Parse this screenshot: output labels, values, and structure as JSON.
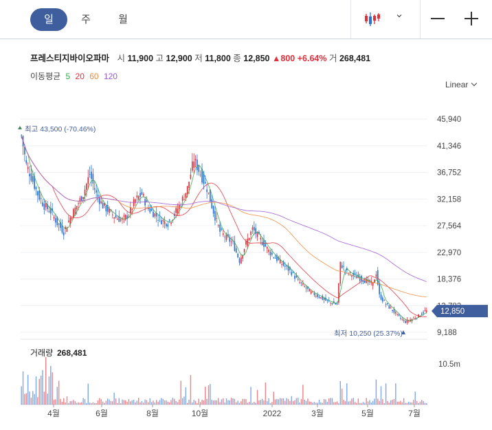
{
  "tabs": [
    {
      "label": "일",
      "active": true
    },
    {
      "label": "주",
      "active": false
    },
    {
      "label": "월",
      "active": false
    }
  ],
  "toolbar": {
    "chart_type_icon": "candlestick-icon",
    "dropdown_icon": "chevron-down-icon",
    "zoom_out_icon": "minus-icon",
    "zoom_in_icon": "plus-icon"
  },
  "quote": {
    "name": "프레스티지바이오파마",
    "open_label": "시",
    "open": "11,900",
    "high_label": "고",
    "high": "12,900",
    "low_label": "저",
    "low": "11,800",
    "close_label": "종",
    "close": "12,850",
    "change": "▲800",
    "change_pct": "+6.64%",
    "volume_label": "거",
    "volume": "268,481"
  },
  "ma": {
    "label": "이동평균",
    "p5": "5",
    "p20": "20",
    "p60": "60",
    "p120": "120"
  },
  "scale": {
    "label": "Linear"
  },
  "colors": {
    "up": "#e0303a",
    "down": "#2a6fd6",
    "ma5": "#35a745",
    "ma20": "#e0303a",
    "ma60": "#f08a3c",
    "ma120": "#9b59d0",
    "accent": "#3f5e9e"
  },
  "chart_data": {
    "type": "candlestick",
    "y_ticks": [
      "45,940",
      "41,346",
      "36,752",
      "32,158",
      "27,564",
      "22,970",
      "18,376",
      "13,782",
      "9,188"
    ],
    "ylim": [
      9188,
      45940
    ],
    "x_ticks": [
      "4월",
      "6월",
      "8월",
      "10월",
      "2022",
      "3월",
      "5월",
      "7월"
    ],
    "current_price": "12,850",
    "high_annotation": "최고 43,500 (-70.46%)",
    "low_annotation": "최저 10,250 (25.37%)",
    "volume_label": "거래량",
    "volume_value": "268,481",
    "volume_tick": "10.5m",
    "close_path": [
      [
        0,
        43000
      ],
      [
        3,
        38000
      ],
      [
        6,
        36000
      ],
      [
        10,
        33000
      ],
      [
        14,
        31000
      ],
      [
        18,
        30000
      ],
      [
        22,
        28000
      ],
      [
        26,
        26500
      ],
      [
        30,
        29000
      ],
      [
        34,
        31000
      ],
      [
        38,
        33000
      ],
      [
        42,
        36500
      ],
      [
        46,
        33000
      ],
      [
        50,
        31000
      ],
      [
        54,
        30000
      ],
      [
        58,
        29000
      ],
      [
        62,
        28500
      ],
      [
        66,
        29500
      ],
      [
        70,
        32000
      ],
      [
        74,
        33000
      ],
      [
        78,
        30500
      ],
      [
        82,
        29500
      ],
      [
        86,
        28500
      ],
      [
        90,
        28000
      ],
      [
        94,
        29500
      ],
      [
        98,
        31500
      ],
      [
        102,
        34000
      ],
      [
        106,
        39000
      ],
      [
        110,
        36500
      ],
      [
        114,
        34000
      ],
      [
        118,
        30000
      ],
      [
        122,
        26500
      ],
      [
        126,
        25500
      ],
      [
        130,
        24500
      ],
      [
        134,
        21500
      ],
      [
        138,
        24500
      ],
      [
        142,
        27000
      ],
      [
        146,
        25500
      ],
      [
        150,
        24000
      ],
      [
        154,
        22500
      ],
      [
        158,
        21500
      ],
      [
        162,
        20500
      ],
      [
        166,
        19500
      ],
      [
        170,
        18000
      ],
      [
        174,
        17000
      ],
      [
        178,
        16000
      ],
      [
        182,
        15500
      ],
      [
        186,
        14800
      ],
      [
        190,
        14300
      ],
      [
        194,
        14000
      ],
      [
        196,
        21000
      ],
      [
        200,
        19500
      ],
      [
        204,
        19000
      ],
      [
        208,
        18500
      ],
      [
        212,
        18000
      ],
      [
        216,
        17500
      ],
      [
        218,
        19500
      ],
      [
        220,
        15500
      ],
      [
        224,
        14000
      ],
      [
        228,
        13000
      ],
      [
        232,
        11800
      ],
      [
        236,
        11000
      ],
      [
        240,
        11500
      ],
      [
        244,
        12000
      ],
      [
        248,
        12850
      ]
    ]
  }
}
